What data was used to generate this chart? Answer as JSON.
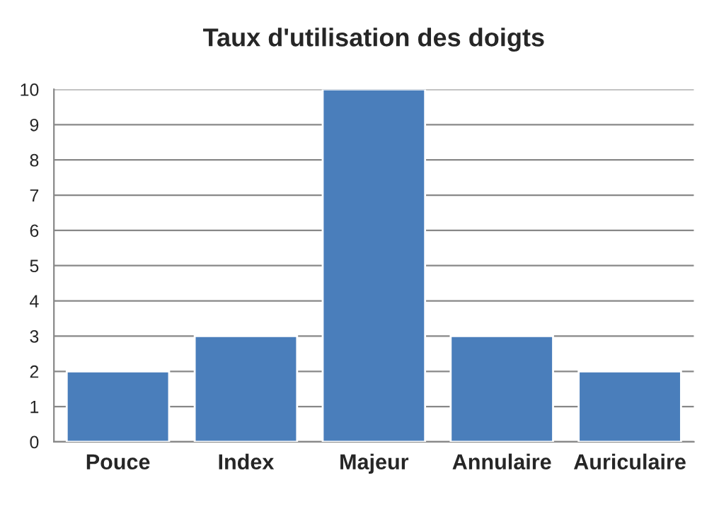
{
  "chart_data": {
    "type": "bar",
    "title": "Taux d'utilisation des doigts",
    "categories": [
      "Pouce",
      "Index",
      "Majeur",
      "Annulaire",
      "Auriculaire"
    ],
    "values": [
      2,
      3,
      10,
      3,
      2
    ],
    "color": "#4a7ebb",
    "ylim": [
      0,
      10
    ],
    "yticks": [
      0,
      1,
      2,
      3,
      4,
      5,
      6,
      7,
      8,
      9,
      10
    ],
    "grid": "y",
    "legend": false
  }
}
